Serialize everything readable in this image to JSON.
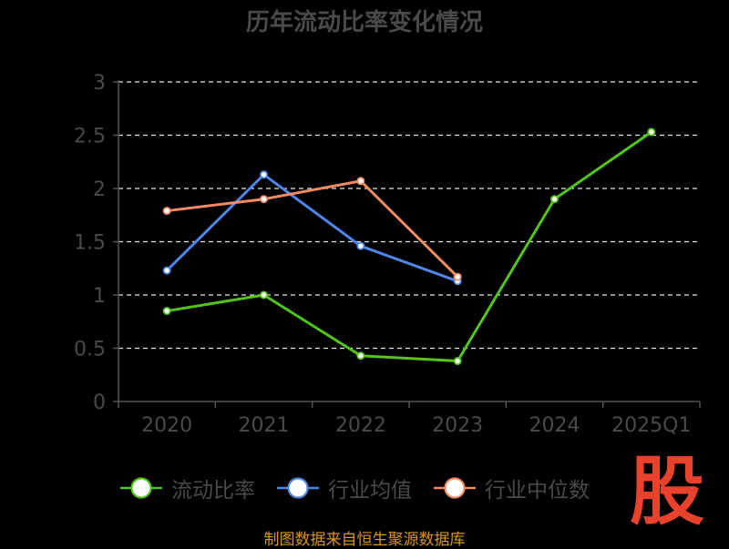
{
  "title": "历年流动比率变化情况",
  "source_text": "制图数据来自恒生聚源数据库",
  "watermark_text": "股",
  "colors": {
    "background": "#000000",
    "axis": "#555555",
    "grid": "#e6e6e6",
    "tick_label": "#4a4a4a",
    "watermark": "#e8412c",
    "source": "#d79520"
  },
  "chart_data": {
    "type": "line",
    "categories": [
      "2020",
      "2021",
      "2022",
      "2023",
      "2024",
      "2025Q1"
    ],
    "ylim": [
      0,
      3
    ],
    "yticks": [
      "0",
      "0.5",
      "1",
      "1.5",
      "2",
      "2.5",
      "3"
    ],
    "grid": true,
    "legend_position": "bottom",
    "series": [
      {
        "name": "流动比率",
        "color": "#52c41a",
        "values": [
          0.85,
          1.0,
          0.43,
          0.38,
          1.9,
          2.53
        ]
      },
      {
        "name": "行业均值",
        "color": "#4f86e8",
        "values": [
          1.23,
          2.13,
          1.46,
          1.13,
          null,
          null
        ]
      },
      {
        "name": "行业中位数",
        "color": "#f08c64",
        "values": [
          1.79,
          1.9,
          2.07,
          1.17,
          null,
          null
        ]
      }
    ]
  }
}
